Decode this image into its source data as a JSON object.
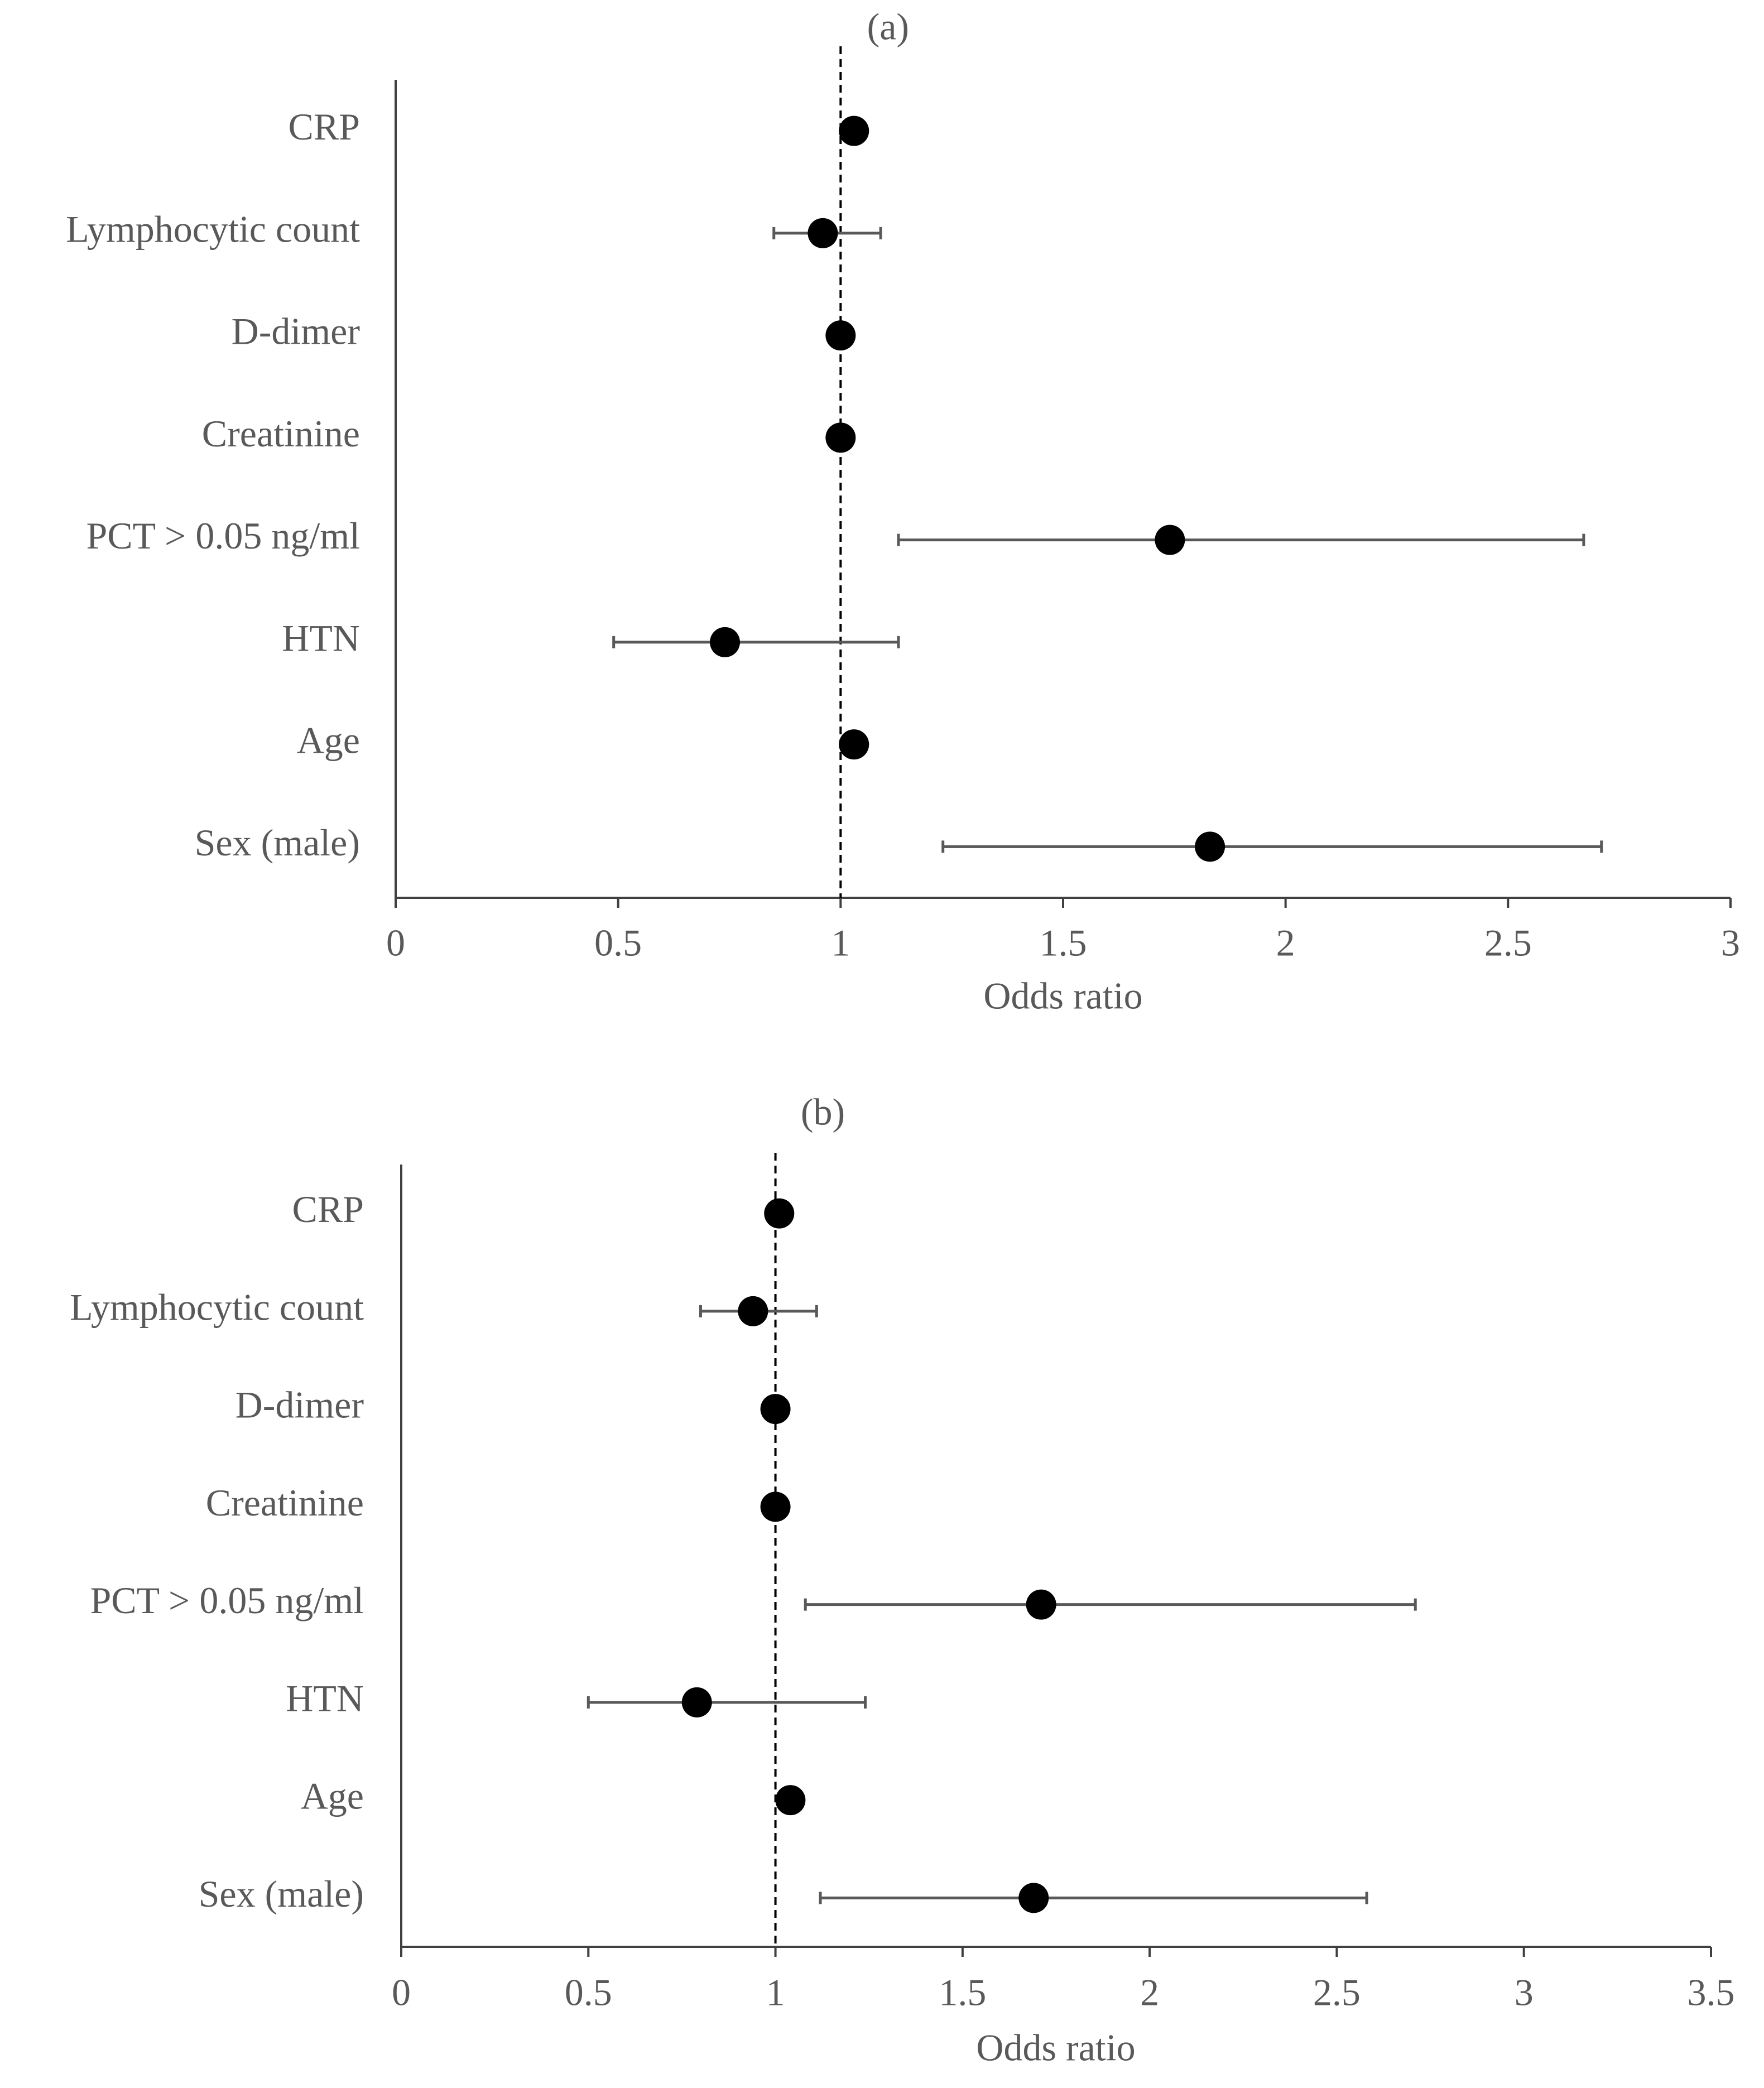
{
  "chart_data": [
    {
      "type": "forest",
      "title": "(a)",
      "xlabel": "Odds ratio",
      "categories": [
        "CRP",
        "Lymphocytic count",
        "D-dimer",
        "Creatinine",
        "PCT > 0.05 ng/ml",
        "HTN",
        "Age",
        "Sex (male)"
      ],
      "values": [
        1.03,
        0.96,
        1.0,
        1.0,
        1.74,
        0.74,
        1.03,
        1.83
      ],
      "lower": [
        1.01,
        0.85,
        0.99,
        0.99,
        1.13,
        0.49,
        1.01,
        1.23
      ],
      "upper": [
        1.05,
        1.09,
        1.01,
        1.01,
        2.67,
        1.13,
        1.05,
        2.71
      ],
      "color": "#000000",
      "reference_line": 1,
      "xlim": [
        0,
        3
      ],
      "xticks": [
        0,
        0.5,
        1,
        1.5,
        2,
        2.5,
        3
      ]
    },
    {
      "type": "forest",
      "title": "(b)",
      "xlabel": "Odds ratio",
      "categories": [
        "CRP",
        "Lymphocytic count",
        "D-dimer",
        "Creatinine",
        "PCT > 0.05 ng/ml",
        "HTN",
        "Age",
        "Sex (male)"
      ],
      "values": [
        1.01,
        0.94,
        1.0,
        1.0,
        1.71,
        0.79,
        1.04,
        1.69
      ],
      "lower": [
        0.99,
        0.8,
        0.99,
        0.99,
        1.08,
        0.5,
        1.02,
        1.12
      ],
      "upper": [
        1.03,
        1.11,
        1.01,
        1.01,
        2.71,
        1.24,
        1.06,
        2.58
      ],
      "color": "#000000",
      "reference_line": 1,
      "xlim": [
        0,
        3.5
      ],
      "xticks": [
        0,
        0.5,
        1,
        1.5,
        2,
        2.5,
        3,
        3.5
      ]
    }
  ]
}
